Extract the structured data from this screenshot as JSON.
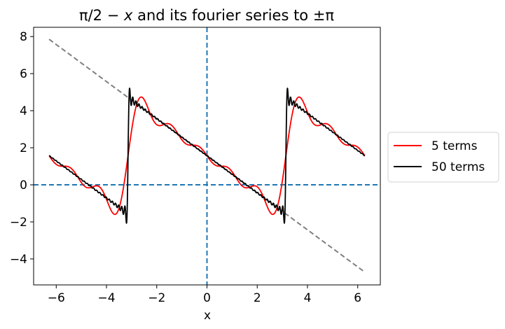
{
  "chart_data": {
    "type": "line",
    "title": "π/2 − x and its fourier series to ±π",
    "title_parts": {
      "left": "π/2 − ",
      "var": "x",
      "right": " and its fourier series to ±π"
    },
    "xlabel": "x",
    "ylabel": "",
    "xlim": [
      -6.9,
      6.9
    ],
    "ylim": [
      -5.4,
      8.5
    ],
    "xticks": [
      -6,
      -4,
      -2,
      0,
      2,
      4,
      6
    ],
    "yticks": [
      -4,
      -2,
      0,
      2,
      4,
      6,
      8
    ],
    "xtick_labels": [
      "−6",
      "−4",
      "−2",
      "0",
      "2",
      "4",
      "6"
    ],
    "ytick_labels": [
      "−4",
      "−2",
      "0",
      "2",
      "4",
      "6",
      "8"
    ],
    "x_domain": [
      -6.2832,
      6.2832
    ],
    "grid": false,
    "legend_position": "outside-right",
    "reference_lines": [
      {
        "name": "y = π/2 − x",
        "x": [
          -6.2832,
          6.2832
        ],
        "y": [
          7.854,
          -4.712
        ],
        "color": "#808080",
        "style": "dashed"
      },
      {
        "name": "y = 0",
        "orientation": "horizontal",
        "value": 0,
        "color": "#1f77b4",
        "style": "dashed"
      },
      {
        "name": "x = 0",
        "orientation": "vertical",
        "value": 0,
        "color": "#1f77b4",
        "style": "dashed"
      }
    ],
    "series": [
      {
        "name": "5 terms",
        "color": "#ff0000",
        "x": [
          -6.2832,
          -5.8,
          -5.5,
          -5.0,
          -4.7,
          -4.5,
          -4.0,
          -3.75,
          -3.6,
          -3.4,
          -3.1416,
          -2.9,
          -2.7,
          -2.5,
          -2.2,
          -1.9,
          -1.6,
          -1.2,
          -0.9,
          -0.6,
          -0.3,
          0,
          0.3,
          0.6,
          1.0,
          1.3,
          1.6,
          2.0,
          2.3,
          2.6,
          2.8,
          3.1416,
          3.3,
          3.55,
          3.8,
          4.1,
          4.4,
          4.7,
          5.0,
          5.3,
          5.6,
          5.9,
          6.2832
        ],
        "y": [
          1.57,
          1.57,
          1.2,
          0.3,
          0.2,
          0.0,
          -0.1,
          -0.9,
          -1.4,
          -1.3,
          1.57,
          4.0,
          4.6,
          4.6,
          3.8,
          3.2,
          2.9,
          3.0,
          2.7,
          2.1,
          1.7,
          1.57,
          1.45,
          1.0,
          0.4,
          0.2,
          0.2,
          -0.3,
          -1.0,
          -1.5,
          -1.3,
          1.57,
          3.2,
          4.4,
          4.6,
          3.9,
          3.1,
          2.95,
          2.9,
          2.3,
          1.8,
          1.6,
          1.57
        ]
      },
      {
        "name": "50 terms",
        "color": "#000000",
        "gibbs_overshoot": 5.1,
        "gibbs_undershoot": -2.0,
        "x": [
          -6.2832,
          -5.5,
          -5.0,
          -4.5,
          -4.0,
          -3.5,
          -3.25,
          -3.2,
          -3.1416,
          -3.1,
          -3.05,
          -2.8,
          -2.5,
          -2.0,
          -1.5,
          -1.0,
          -0.5,
          0,
          0.5,
          1.0,
          1.5,
          2.0,
          2.5,
          2.8,
          3.05,
          3.1,
          3.1416,
          3.2,
          3.25,
          3.5,
          4.0,
          4.5,
          5.0,
          5.5,
          6.2832
        ],
        "y": [
          1.57,
          0.85,
          0.3,
          -0.15,
          -0.5,
          -1.1,
          -1.3,
          -2.0,
          1.57,
          5.1,
          4.7,
          4.4,
          4.1,
          3.57,
          3.1,
          2.57,
          2.1,
          1.57,
          1.1,
          0.57,
          0.1,
          -0.4,
          -0.9,
          -1.2,
          -1.4,
          -2.0,
          1.57,
          5.1,
          4.7,
          4.6,
          4.1,
          3.6,
          3.1,
          2.6,
          1.57
        ]
      }
    ]
  }
}
